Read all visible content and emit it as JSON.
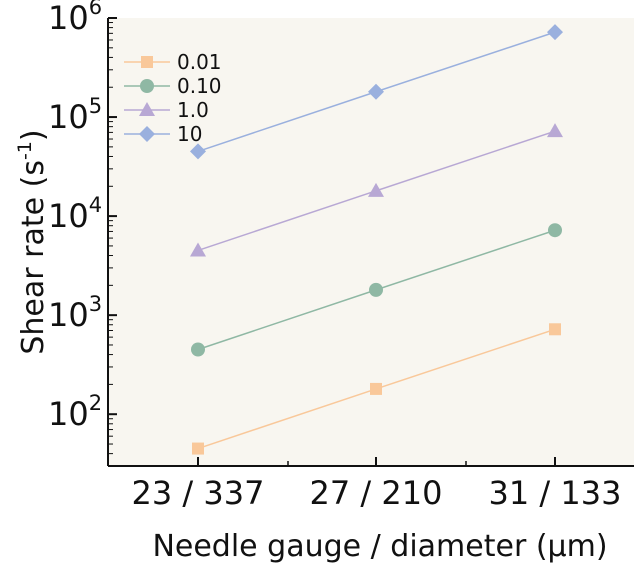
{
  "chart_data": {
    "type": "line",
    "title": "",
    "xlabel": "Needle gauge / diameter (μm)",
    "ylabel_main": "Shear rate (s",
    "ylabel_sup": "-1",
    "ylabel_end": ")",
    "categories": [
      "23 / 337",
      "27 / 210",
      "31 / 133"
    ],
    "yscale": "log",
    "ylim": [
      30,
      1000000
    ],
    "y_ticks": [
      {
        "base": "10",
        "exp": "2",
        "value": 100
      },
      {
        "base": "10",
        "exp": "3",
        "value": 1000
      },
      {
        "base": "10",
        "exp": "4",
        "value": 10000
      },
      {
        "base": "10",
        "exp": "5",
        "value": 100000
      },
      {
        "base": "10",
        "exp": "6",
        "value": 1000000
      }
    ],
    "grid": false,
    "legend_position": "top-left",
    "series": [
      {
        "name": "0.01",
        "marker": "square",
        "color": "#f9c89a",
        "values": [
          45,
          180,
          720
        ]
      },
      {
        "name": "0.10",
        "marker": "circle",
        "color": "#8fb8a4",
        "values": [
          450,
          1800,
          7200
        ]
      },
      {
        "name": "1.0",
        "marker": "triangle",
        "color": "#b8a8d4",
        "values": [
          4500,
          18000,
          72000
        ]
      },
      {
        "name": "10",
        "marker": "diamond",
        "color": "#9ab0de",
        "values": [
          45000,
          180000,
          720000
        ]
      }
    ],
    "plot_background": "#f8f6f0"
  }
}
